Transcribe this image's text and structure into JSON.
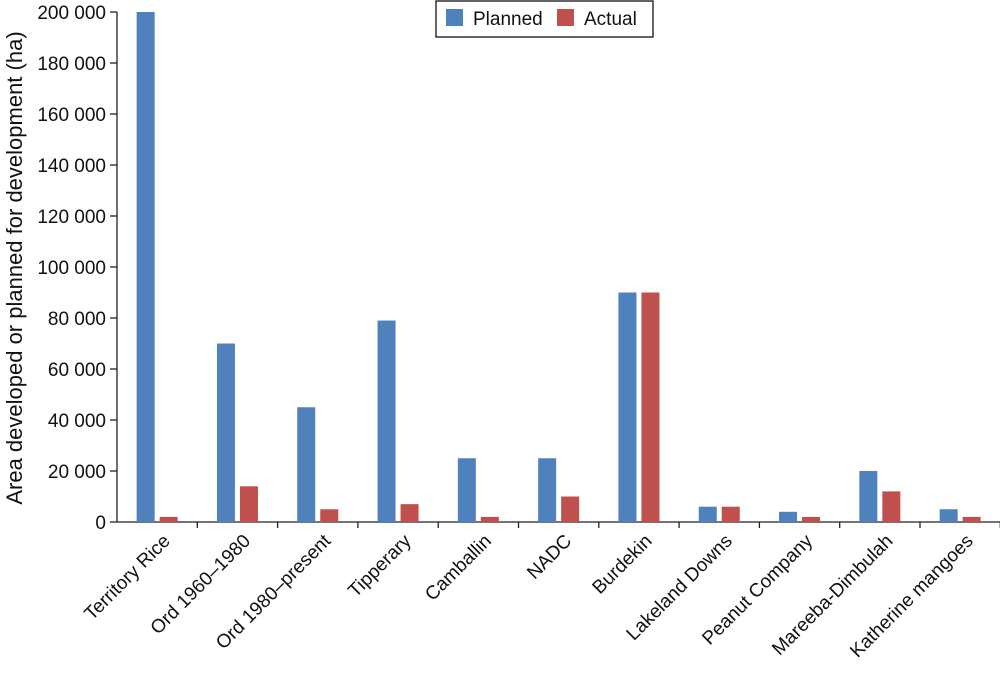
{
  "chart_data": {
    "type": "bar",
    "title": "",
    "xlabel": "",
    "ylabel": "Area developed or planned for development (ha)",
    "ylim": [
      0,
      200000
    ],
    "yticks": [
      0,
      20000,
      40000,
      60000,
      80000,
      100000,
      120000,
      140000,
      160000,
      180000,
      200000
    ],
    "ytick_labels": [
      "0",
      "20 000",
      "40 000",
      "60 000",
      "80 000",
      "100 000",
      "120 000",
      "140 000",
      "160 000",
      "180 000",
      "200 000"
    ],
    "grid": false,
    "legend_position": "top-center",
    "categories": [
      "Territory Rice",
      "Ord 1960–1980",
      "Ord 1980–present",
      "Tipperary",
      "Camballin",
      "NADC",
      "Burdekin",
      "Lakeland Downs",
      "Peanut Company",
      "Mareeba-Dimbulah",
      "Katherine mangoes"
    ],
    "series": [
      {
        "name": "Planned",
        "color": "#4f81bd",
        "values": [
          200000,
          70000,
          45000,
          79000,
          25000,
          25000,
          90000,
          6000,
          4000,
          20000,
          5000
        ]
      },
      {
        "name": "Actual",
        "color": "#c0504d",
        "values": [
          2000,
          14000,
          5000,
          7000,
          2000,
          10000,
          90000,
          6000,
          2000,
          12000,
          2000
        ]
      }
    ]
  }
}
